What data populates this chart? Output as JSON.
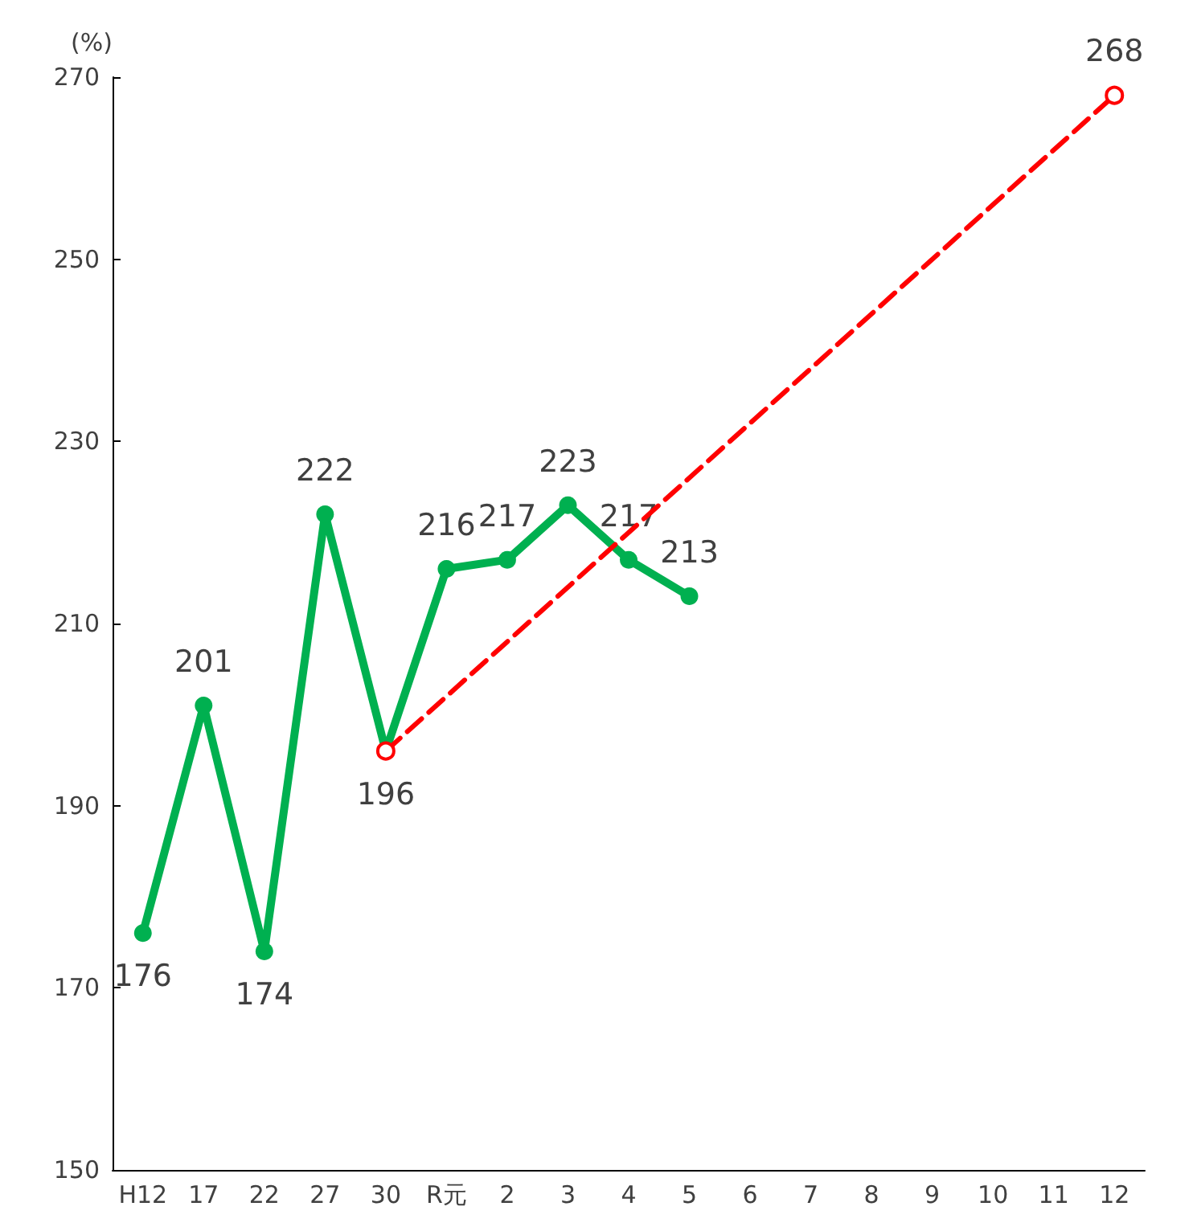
{
  "chart_data": {
    "type": "line",
    "ylabel": "(%)",
    "categories": [
      "H12",
      "17",
      "22",
      "27",
      "30",
      "R元",
      "2",
      "3",
      "4",
      "5",
      "6",
      "7",
      "8",
      "9",
      "10",
      "11",
      "12"
    ],
    "series": [
      {
        "color": "#00b050",
        "line_style": "solid",
        "marker": "circle",
        "values": [
          176,
          201,
          174,
          222,
          196,
          216,
          217,
          223,
          217,
          213,
          null,
          null,
          null,
          null,
          null,
          null,
          null
        ],
        "value_labels": [
          "176",
          "201",
          "174",
          "222",
          "196",
          "216",
          "217",
          "223",
          "217",
          "213",
          null,
          null,
          null,
          null,
          null,
          null,
          null
        ]
      },
      {
        "color": "#ff0000",
        "line_style": "dashed",
        "marker": "circle",
        "values": [
          null,
          null,
          null,
          null,
          196,
          null,
          null,
          null,
          null,
          null,
          null,
          null,
          null,
          null,
          null,
          null,
          268
        ],
        "value_labels": [
          null,
          null,
          null,
          null,
          null,
          null,
          null,
          null,
          null,
          null,
          null,
          null,
          null,
          null,
          null,
          null,
          "268"
        ]
      }
    ],
    "ylim": [
      150,
      270
    ],
    "yticks": [
      150,
      170,
      190,
      210,
      230,
      250,
      270
    ],
    "grid": false
  }
}
